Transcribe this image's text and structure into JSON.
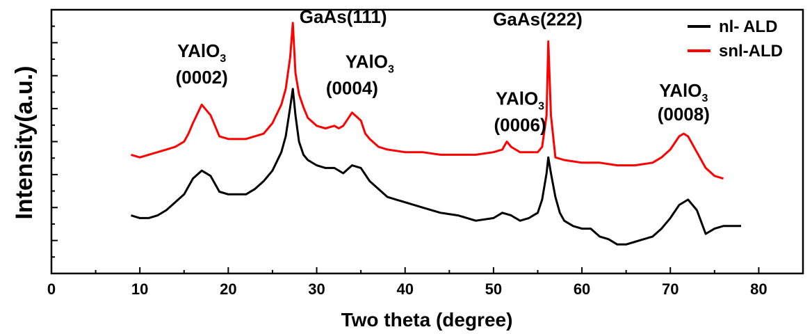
{
  "chart_data": {
    "type": "line",
    "title": "",
    "xlabel": "Two theta (degree)",
    "ylabel": "Intensity(a.u.)",
    "xlim": [
      0,
      85
    ],
    "ylim": [
      0,
      100
    ],
    "xticks": [
      "0",
      "10",
      "20",
      "30",
      "40",
      "50",
      "60",
      "70",
      "80"
    ],
    "y_tick_labels_shown": false,
    "grid": false,
    "legend_position": "top-right",
    "legend": [
      "nl- ALD",
      "snl-ALD"
    ],
    "annotations": [
      {
        "text": "YAlO",
        "sub": "3",
        "x": 17,
        "y": 82
      },
      {
        "text": "(0002)",
        "x": 17,
        "y": 72
      },
      {
        "text": "GaAs(111)",
        "x": 33,
        "y": 95
      },
      {
        "text": "YAlO",
        "sub": "3",
        "x": 36,
        "y": 78
      },
      {
        "text": "(0004)",
        "x": 34,
        "y": 68
      },
      {
        "text": "YAlO",
        "sub": "3",
        "x": 53,
        "y": 64
      },
      {
        "text": "(0006)",
        "x": 53,
        "y": 54
      },
      {
        "text": "GaAs(222)",
        "x": 55,
        "y": 94
      },
      {
        "text": "YAlO",
        "sub": "3",
        "x": 71.5,
        "y": 67
      },
      {
        "text": "(0008)",
        "x": 71.5,
        "y": 58
      }
    ],
    "series": [
      {
        "name": "nl- ALD",
        "color": "#000000",
        "x": [
          9,
          10,
          11,
          12,
          13,
          14,
          15,
          16,
          17,
          18,
          19,
          20,
          21,
          22,
          23,
          24,
          25,
          26,
          26.5,
          27,
          27.3,
          27.6,
          28,
          28.5,
          29,
          30,
          31,
          32,
          33,
          34,
          35,
          36,
          37,
          38,
          39,
          40,
          42,
          44,
          46,
          48,
          50,
          51,
          52,
          53,
          54,
          55,
          55.5,
          56,
          56.2,
          56.5,
          57,
          57.5,
          58,
          59,
          60,
          61,
          62,
          63,
          64,
          65,
          66,
          67,
          68,
          69,
          70,
          71,
          72,
          73,
          74,
          75,
          76,
          77,
          78
        ],
        "values": [
          22,
          21,
          21,
          22,
          24,
          27,
          30,
          36,
          39,
          37,
          31,
          30,
          30,
          30,
          32,
          35,
          39,
          46,
          52,
          63,
          70,
          60,
          50,
          45,
          43,
          41,
          40,
          40,
          38,
          41,
          40,
          35,
          32,
          29,
          28,
          27,
          25,
          23,
          22,
          20,
          21,
          23,
          22,
          20,
          21,
          23,
          28,
          38,
          44,
          38,
          29,
          23,
          20,
          18,
          17,
          17,
          14,
          13,
          11,
          11,
          12,
          13,
          14,
          17,
          21,
          26,
          28,
          24,
          15,
          17,
          18,
          18,
          18
        ]
      },
      {
        "name": "snl-ALD",
        "color": "#ff0000",
        "x": [
          9,
          10,
          11,
          12,
          13,
          14,
          15,
          15.5,
          16,
          17,
          18,
          18.5,
          19,
          20,
          21,
          22,
          23,
          24,
          25,
          26,
          26.5,
          27,
          27.3,
          27.6,
          28,
          28.5,
          29,
          30,
          31,
          32,
          32.5,
          33,
          34,
          35,
          35.5,
          36,
          37,
          38,
          40,
          42,
          44,
          46,
          48,
          50,
          51,
          51.5,
          52,
          53,
          54,
          55,
          55.5,
          56,
          56.2,
          56.5,
          57,
          58,
          60,
          62,
          64,
          66,
          68,
          69,
          70,
          71,
          71.5,
          72,
          73,
          73.5,
          74,
          75,
          76
        ],
        "values": [
          45,
          44,
          45,
          46,
          47,
          48,
          50,
          53,
          57,
          64,
          60,
          56,
          52,
          51,
          51,
          51,
          52,
          53,
          57,
          64,
          70,
          82,
          95,
          76,
          68,
          63,
          59,
          56,
          55,
          56,
          55,
          56,
          61,
          58,
          53,
          51,
          48,
          47,
          46,
          46,
          45,
          45,
          45,
          46,
          47,
          50,
          48,
          46,
          46,
          46,
          48,
          60,
          88,
          60,
          44,
          43,
          42,
          42,
          41,
          41,
          42,
          44,
          47,
          52,
          53,
          52,
          46,
          43,
          40,
          37,
          36
        ]
      }
    ]
  }
}
